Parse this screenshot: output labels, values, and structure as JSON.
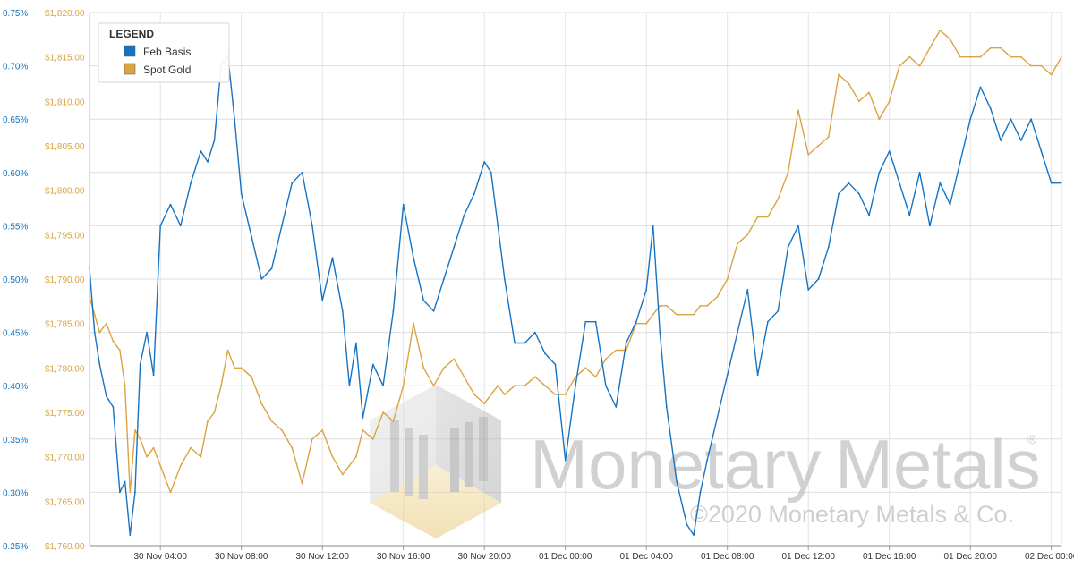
{
  "chart_data": {
    "type": "line",
    "title": "",
    "legend": {
      "title": "LEGEND",
      "placement": "top-left",
      "entries": [
        {
          "label": "Feb Basis",
          "color": "#1673c3"
        },
        {
          "label": "Spot Gold",
          "color": "#d9a441"
        }
      ]
    },
    "grid": true,
    "x_ticks": [
      "30 Nov 04:00",
      "30 Nov 08:00",
      "30 Nov 12:00",
      "30 Nov 16:00",
      "30 Nov 20:00",
      "01 Dec 00:00",
      "01 Dec 04:00",
      "01 Dec 08:00",
      "01 Dec 12:00",
      "01 Dec 16:00",
      "01 Dec 20:00",
      "02 Dec 00:00"
    ],
    "x_range": [
      "30 Nov 00:30",
      "02 Dec 00:30"
    ],
    "y_basis": {
      "ticks": [
        "0.25%",
        "0.30%",
        "0.35%",
        "0.40%",
        "0.45%",
        "0.50%",
        "0.55%",
        "0.60%",
        "0.65%",
        "0.70%",
        "0.75%"
      ],
      "range": [
        0.25,
        0.75
      ],
      "color": "#1673c3"
    },
    "y_gold": {
      "ticks": [
        "$1,760.00",
        "$1,765.00",
        "$1,770.00",
        "$1,775.00",
        "$1,780.00",
        "$1,785.00",
        "$1,790.00",
        "$1,795.00",
        "$1,800.00",
        "$1,805.00",
        "$1,810.00",
        "$1,815.00",
        "$1,820.00"
      ],
      "range": [
        1760,
        1820
      ],
      "color": "#d9a441"
    },
    "series": [
      {
        "name": "Feb Basis",
        "axis": "basis",
        "color": "#1673c3",
        "x": [
          "30 Nov 00:30",
          "30 Nov 00:45",
          "30 Nov 01:00",
          "30 Nov 01:20",
          "30 Nov 01:40",
          "30 Nov 02:00",
          "30 Nov 02:15",
          "30 Nov 02:30",
          "30 Nov 02:45",
          "30 Nov 03:00",
          "30 Nov 03:20",
          "30 Nov 03:40",
          "30 Nov 04:00",
          "30 Nov 04:30",
          "30 Nov 05:00",
          "30 Nov 05:30",
          "30 Nov 06:00",
          "30 Nov 06:20",
          "30 Nov 06:40",
          "30 Nov 07:00",
          "30 Nov 07:20",
          "30 Nov 07:40",
          "30 Nov 08:00",
          "30 Nov 08:30",
          "30 Nov 09:00",
          "30 Nov 09:30",
          "30 Nov 10:00",
          "30 Nov 10:30",
          "30 Nov 11:00",
          "30 Nov 11:30",
          "30 Nov 12:00",
          "30 Nov 12:30",
          "30 Nov 13:00",
          "30 Nov 13:20",
          "30 Nov 13:40",
          "30 Nov 14:00",
          "30 Nov 14:30",
          "30 Nov 15:00",
          "30 Nov 15:30",
          "30 Nov 16:00",
          "30 Nov 16:30",
          "30 Nov 17:00",
          "30 Nov 17:30",
          "30 Nov 18:00",
          "30 Nov 18:30",
          "30 Nov 19:00",
          "30 Nov 19:30",
          "30 Nov 20:00",
          "30 Nov 20:20",
          "30 Nov 20:40",
          "30 Nov 21:00",
          "30 Nov 21:30",
          "30 Nov 22:00",
          "30 Nov 22:30",
          "30 Nov 23:00",
          "30 Nov 23:30",
          "01 Dec 00:00",
          "01 Dec 00:30",
          "01 Dec 01:00",
          "01 Dec 01:30",
          "01 Dec 02:00",
          "01 Dec 02:30",
          "01 Dec 03:00",
          "01 Dec 03:30",
          "01 Dec 04:00",
          "01 Dec 04:20",
          "01 Dec 04:40",
          "01 Dec 05:00",
          "01 Dec 05:30",
          "01 Dec 06:00",
          "01 Dec 06:20",
          "01 Dec 06:40",
          "01 Dec 07:00",
          "01 Dec 07:30",
          "01 Dec 08:00",
          "01 Dec 08:30",
          "01 Dec 09:00",
          "01 Dec 09:30",
          "01 Dec 10:00",
          "01 Dec 10:30",
          "01 Dec 11:00",
          "01 Dec 11:30",
          "01 Dec 12:00",
          "01 Dec 12:30",
          "01 Dec 13:00",
          "01 Dec 13:30",
          "01 Dec 14:00",
          "01 Dec 14:30",
          "01 Dec 15:00",
          "01 Dec 15:30",
          "01 Dec 16:00",
          "01 Dec 16:30",
          "01 Dec 17:00",
          "01 Dec 17:30",
          "01 Dec 18:00",
          "01 Dec 18:30",
          "01 Dec 19:00",
          "01 Dec 19:30",
          "01 Dec 20:00",
          "01 Dec 20:30",
          "01 Dec 21:00",
          "01 Dec 21:30",
          "01 Dec 22:00",
          "01 Dec 22:30",
          "01 Dec 23:00",
          "01 Dec 23:30",
          "02 Dec 00:00",
          "02 Dec 00:30"
        ],
        "values": [
          0.51,
          0.45,
          0.42,
          0.39,
          0.38,
          0.3,
          0.31,
          0.26,
          0.3,
          0.42,
          0.45,
          0.41,
          0.55,
          0.57,
          0.55,
          0.59,
          0.62,
          0.61,
          0.63,
          0.7,
          0.71,
          0.65,
          0.58,
          0.54,
          0.5,
          0.51,
          0.55,
          0.59,
          0.6,
          0.55,
          0.48,
          0.52,
          0.47,
          0.4,
          0.44,
          0.37,
          0.42,
          0.4,
          0.47,
          0.57,
          0.52,
          0.48,
          0.47,
          0.5,
          0.53,
          0.56,
          0.58,
          0.61,
          0.6,
          0.55,
          0.5,
          0.44,
          0.44,
          0.45,
          0.43,
          0.42,
          0.33,
          0.4,
          0.46,
          0.46,
          0.4,
          0.38,
          0.44,
          0.46,
          0.49,
          0.55,
          0.45,
          0.38,
          0.31,
          0.27,
          0.26,
          0.3,
          0.33,
          0.37,
          0.41,
          0.45,
          0.49,
          0.41,
          0.46,
          0.47,
          0.53,
          0.55,
          0.49,
          0.5,
          0.53,
          0.58,
          0.59,
          0.58,
          0.56,
          0.6,
          0.62,
          0.59,
          0.56,
          0.6,
          0.55,
          0.59,
          0.57,
          0.61,
          0.65,
          0.68,
          0.66,
          0.63,
          0.65,
          0.63,
          0.65,
          0.62,
          0.59,
          0.59
        ]
      },
      {
        "name": "Spot Gold",
        "axis": "gold",
        "color": "#d9a441",
        "x": [
          "30 Nov 00:30",
          "30 Nov 00:45",
          "30 Nov 01:00",
          "30 Nov 01:20",
          "30 Nov 01:40",
          "30 Nov 02:00",
          "30 Nov 02:15",
          "30 Nov 02:30",
          "30 Nov 02:45",
          "30 Nov 03:00",
          "30 Nov 03:20",
          "30 Nov 03:40",
          "30 Nov 04:00",
          "30 Nov 04:30",
          "30 Nov 05:00",
          "30 Nov 05:30",
          "30 Nov 06:00",
          "30 Nov 06:20",
          "30 Nov 06:40",
          "30 Nov 07:00",
          "30 Nov 07:20",
          "30 Nov 07:40",
          "30 Nov 08:00",
          "30 Nov 08:30",
          "30 Nov 09:00",
          "30 Nov 09:30",
          "30 Nov 10:00",
          "30 Nov 10:30",
          "30 Nov 11:00",
          "30 Nov 11:30",
          "30 Nov 12:00",
          "30 Nov 12:30",
          "30 Nov 13:00",
          "30 Nov 13:20",
          "30 Nov 13:40",
          "30 Nov 14:00",
          "30 Nov 14:30",
          "30 Nov 15:00",
          "30 Nov 15:30",
          "30 Nov 16:00",
          "30 Nov 16:30",
          "30 Nov 17:00",
          "30 Nov 17:30",
          "30 Nov 18:00",
          "30 Nov 18:30",
          "30 Nov 19:00",
          "30 Nov 19:30",
          "30 Nov 20:00",
          "30 Nov 20:20",
          "30 Nov 20:40",
          "30 Nov 21:00",
          "30 Nov 21:30",
          "30 Nov 22:00",
          "30 Nov 22:30",
          "30 Nov 23:00",
          "30 Nov 23:30",
          "01 Dec 00:00",
          "01 Dec 00:30",
          "01 Dec 01:00",
          "01 Dec 01:30",
          "01 Dec 02:00",
          "01 Dec 02:30",
          "01 Dec 03:00",
          "01 Dec 03:30",
          "01 Dec 04:00",
          "01 Dec 04:20",
          "01 Dec 04:40",
          "01 Dec 05:00",
          "01 Dec 05:30",
          "01 Dec 06:00",
          "01 Dec 06:20",
          "01 Dec 06:40",
          "01 Dec 07:00",
          "01 Dec 07:30",
          "01 Dec 08:00",
          "01 Dec 08:30",
          "01 Dec 09:00",
          "01 Dec 09:30",
          "01 Dec 10:00",
          "01 Dec 10:30",
          "01 Dec 11:00",
          "01 Dec 11:30",
          "01 Dec 12:00",
          "01 Dec 12:30",
          "01 Dec 13:00",
          "01 Dec 13:30",
          "01 Dec 14:00",
          "01 Dec 14:30",
          "01 Dec 15:00",
          "01 Dec 15:30",
          "01 Dec 16:00",
          "01 Dec 16:30",
          "01 Dec 17:00",
          "01 Dec 17:30",
          "01 Dec 18:00",
          "01 Dec 18:30",
          "01 Dec 19:00",
          "01 Dec 19:30",
          "01 Dec 20:00",
          "01 Dec 20:30",
          "01 Dec 21:00",
          "01 Dec 21:30",
          "01 Dec 22:00",
          "01 Dec 22:30",
          "01 Dec 23:00",
          "01 Dec 23:30",
          "02 Dec 00:00",
          "02 Dec 00:30"
        ],
        "values": [
          1788,
          1786,
          1784,
          1785,
          1783,
          1782,
          1778,
          1766,
          1773,
          1772,
          1770,
          1771,
          1769,
          1766,
          1769,
          1771,
          1770,
          1774,
          1775,
          1778,
          1782,
          1780,
          1780,
          1779,
          1776,
          1774,
          1773,
          1771,
          1767,
          1772,
          1773,
          1770,
          1768,
          1769,
          1770,
          1773,
          1772,
          1775,
          1774,
          1778,
          1785,
          1780,
          1778,
          1780,
          1781,
          1779,
          1777,
          1776,
          1777,
          1778,
          1777,
          1778,
          1778,
          1779,
          1778,
          1777,
          1777,
          1779,
          1780,
          1779,
          1781,
          1782,
          1782,
          1785,
          1785,
          1786,
          1787,
          1787,
          1786,
          1786,
          1786,
          1787,
          1787,
          1788,
          1790,
          1794,
          1795,
          1797,
          1797,
          1799,
          1802,
          1809,
          1804,
          1805,
          1806,
          1813,
          1812,
          1810,
          1811,
          1808,
          1810,
          1814,
          1815,
          1814,
          1816,
          1818,
          1817,
          1815,
          1815,
          1815,
          1816,
          1816,
          1815,
          1815,
          1814,
          1814,
          1813,
          1815
        ]
      }
    ]
  },
  "watermark": {
    "brand_left": "Monetary",
    "brand_right": "Metals",
    "registered": "®",
    "copyright": "©2020 Monetary Metals & Co."
  }
}
